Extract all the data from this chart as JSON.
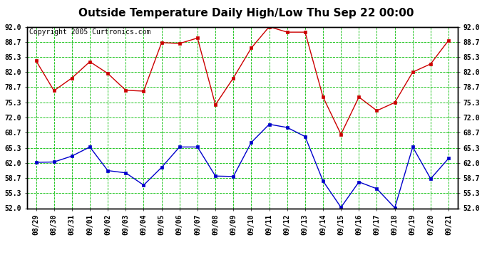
{
  "title": "Outside Temperature Daily High/Low Thu Sep 22 00:00",
  "copyright": "Copyright 2005 Curtronics.com",
  "x_labels": [
    "08/29",
    "08/30",
    "08/31",
    "09/01",
    "09/02",
    "09/03",
    "09/04",
    "09/05",
    "09/06",
    "09/07",
    "09/08",
    "09/09",
    "09/10",
    "09/11",
    "09/12",
    "09/13",
    "09/14",
    "09/15",
    "09/16",
    "09/17",
    "09/18",
    "09/19",
    "09/20",
    "09/21"
  ],
  "high_temps": [
    84.5,
    77.9,
    80.7,
    84.3,
    81.7,
    78.0,
    77.8,
    88.5,
    88.3,
    89.5,
    74.8,
    80.7,
    87.3,
    92.0,
    90.8,
    90.8,
    76.5,
    68.3,
    76.5,
    73.5,
    75.3,
    82.0,
    83.8,
    89.0
  ],
  "low_temps": [
    62.1,
    62.2,
    63.5,
    65.5,
    60.3,
    59.8,
    57.1,
    61.0,
    65.5,
    65.5,
    59.1,
    59.0,
    66.5,
    70.5,
    69.8,
    67.8,
    58.0,
    52.2,
    57.8,
    56.3,
    52.1,
    65.5,
    58.5,
    63.0
  ],
  "ylim": [
    52.0,
    92.0
  ],
  "yticks": [
    52.0,
    55.3,
    58.7,
    62.0,
    65.3,
    68.7,
    72.0,
    75.3,
    78.7,
    82.0,
    85.3,
    88.7,
    92.0
  ],
  "high_color": "#cc0000",
  "low_color": "#0000cc",
  "grid_color": "#00bb00",
  "bg_color": "#ffffff",
  "title_fontsize": 11,
  "copyright_fontsize": 7,
  "tick_fontsize": 7
}
